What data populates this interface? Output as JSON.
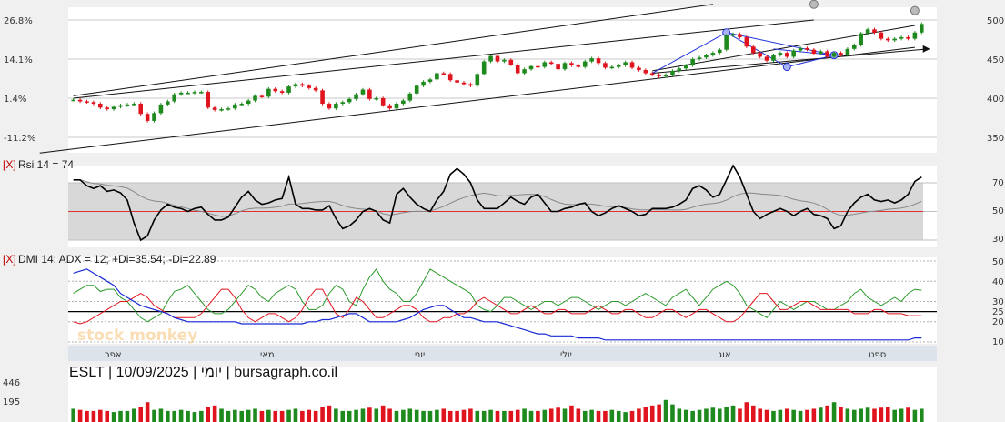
{
  "caption": "ESLT | 10/09/2025 | יומי | bursagraph.co.il",
  "watermark": "stock monkey",
  "colors": {
    "up": "#1e8a1e",
    "down": "#e0141e",
    "rsi": "#000000",
    "rsi_signal": "#888888",
    "plus_di": "#2a9a2a",
    "minus_di": "#e0141e",
    "adx": "#1a2ad6",
    "trend": "#111111",
    "pattern": "#2233dd"
  },
  "chart_data": [
    {
      "type": "candlestick",
      "title": "",
      "y_left_ticks": [
        "26.8%",
        "14.1%",
        "1.4%",
        "-11.2%"
      ],
      "y_right_ticks": [
        "500",
        "450",
        "400",
        "350"
      ],
      "ylim": [
        335,
        520
      ],
      "x_ticks": [
        "אפר",
        "מאי",
        "יוני",
        "יולי",
        "אוג",
        "ספט"
      ],
      "closes": [
        398,
        396,
        395,
        393,
        388,
        386,
        389,
        391,
        392,
        393,
        380,
        371,
        381,
        392,
        396,
        405,
        407,
        407,
        408,
        408,
        388,
        385,
        386,
        387,
        392,
        393,
        397,
        403,
        402,
        412,
        409,
        407,
        415,
        418,
        416,
        413,
        410,
        393,
        387,
        393,
        395,
        399,
        405,
        411,
        399,
        400,
        391,
        387,
        393,
        397,
        406,
        416,
        421,
        424,
        432,
        431,
        423,
        420,
        418,
        416,
        431,
        447,
        454,
        447,
        449,
        443,
        432,
        437,
        441,
        440,
        446,
        444,
        437,
        445,
        442,
        440,
        447,
        451,
        445,
        439,
        440,
        442,
        446,
        439,
        436,
        432,
        430,
        428,
        430,
        435,
        438,
        442,
        450,
        452,
        455,
        458,
        462,
        480,
        482,
        478,
        466,
        458,
        453,
        448,
        455,
        458,
        453,
        461,
        464,
        462,
        457,
        460,
        453,
        458,
        455,
        463,
        468,
        483,
        488,
        484,
        476,
        474,
        476,
        478,
        476,
        484,
        495
      ]
    },
    {
      "type": "line",
      "title": "Rsi 14 = 74",
      "y_ticks": [
        "70",
        "50",
        "30"
      ],
      "ylim": [
        25,
        80
      ],
      "series": [
        {
          "name": "Rsi 14",
          "values": [
            72,
            72,
            68,
            66,
            68,
            64,
            65,
            63,
            58,
            42,
            30,
            33,
            44,
            51,
            55,
            53,
            52,
            50,
            52,
            53,
            48,
            44,
            44,
            46,
            53,
            60,
            64,
            58,
            55,
            56,
            58,
            59,
            74,
            55,
            52,
            52,
            51,
            51,
            54,
            45,
            38,
            40,
            44,
            50,
            52,
            50,
            44,
            42,
            62,
            66,
            60,
            55,
            52,
            50,
            58,
            64,
            76,
            80,
            76,
            70,
            58,
            52,
            52,
            52,
            56,
            60,
            57,
            55,
            60,
            62,
            56,
            50,
            50,
            52,
            53,
            55,
            56,
            50,
            47,
            49,
            52,
            54,
            52,
            50,
            47,
            48,
            52,
            52,
            52,
            53,
            55,
            58,
            66,
            68,
            65,
            60,
            62,
            72,
            82,
            74,
            62,
            50,
            45,
            48,
            50,
            52,
            50,
            47,
            50,
            52,
            48,
            47,
            45,
            38,
            40,
            50,
            56,
            60,
            62,
            58,
            57,
            58,
            56,
            58,
            62,
            71,
            74
          ]
        },
        {
          "values": [
            50,
            50,
            50,
            50,
            50,
            50,
            50,
            50,
            50,
            50,
            50,
            50,
            50,
            50,
            50,
            50,
            50,
            50,
            50,
            50,
            50,
            50,
            50,
            50,
            50,
            50,
            50,
            50,
            50,
            50,
            50,
            50,
            50,
            50,
            50,
            50,
            50,
            50,
            50,
            50,
            50,
            50,
            50,
            50,
            50,
            50,
            50,
            50,
            50,
            50,
            50,
            50,
            50,
            50,
            50,
            50,
            50,
            50,
            50,
            50,
            50,
            50,
            50,
            50,
            50,
            50,
            50,
            50,
            50,
            50,
            50,
            50,
            50,
            50,
            50,
            50,
            50,
            50,
            50,
            50,
            50,
            50,
            50,
            50,
            50,
            50,
            50,
            50,
            50,
            50,
            50,
            50,
            50,
            50,
            50,
            50,
            50,
            50,
            50,
            50,
            50,
            50,
            50,
            50,
            50,
            50,
            50,
            50,
            50,
            50,
            50,
            50,
            50,
            50,
            50,
            50,
            50,
            50,
            50,
            50,
            50,
            50,
            50,
            50,
            50,
            50,
            50
          ]
        }
      ]
    },
    {
      "type": "line",
      "title": "DMI 14: ADX = 12; +Di=35.54; -Di=22.89",
      "y_ticks": [
        "50",
        "40",
        "30",
        "25",
        "20",
        "10"
      ],
      "ylim": [
        8,
        52
      ],
      "series": [
        {
          "name": "+Di",
          "values": [
            34,
            36,
            38,
            38,
            35,
            36,
            36,
            32,
            30,
            26,
            22,
            20,
            22,
            24,
            30,
            35,
            36,
            38,
            34,
            30,
            26,
            24,
            24,
            26,
            30,
            34,
            38,
            36,
            32,
            30,
            34,
            36,
            38,
            36,
            30,
            26,
            26,
            28,
            34,
            38,
            36,
            30,
            28,
            36,
            42,
            46,
            40,
            36,
            34,
            30,
            30,
            34,
            40,
            46,
            44,
            42,
            40,
            38,
            36,
            34,
            28,
            26,
            25,
            28,
            32,
            32,
            30,
            28,
            26,
            28,
            30,
            30,
            28,
            30,
            32,
            32,
            30,
            28,
            26,
            28,
            30,
            30,
            28,
            30,
            32,
            34,
            32,
            30,
            28,
            32,
            34,
            36,
            32,
            28,
            32,
            36,
            38,
            40,
            38,
            34,
            28,
            26,
            24,
            22,
            26,
            30,
            28,
            26,
            28,
            30,
            30,
            28,
            26,
            26,
            28,
            30,
            34,
            36,
            32,
            30,
            28,
            30,
            32,
            30,
            34,
            36,
            35.54
          ]
        },
        {
          "name": "-Di",
          "values": [
            20,
            19,
            20,
            22,
            24,
            26,
            28,
            30,
            30,
            32,
            34,
            32,
            28,
            26,
            24,
            22,
            22,
            22,
            22,
            24,
            28,
            32,
            36,
            36,
            32,
            26,
            22,
            20,
            22,
            24,
            24,
            22,
            20,
            22,
            26,
            32,
            36,
            36,
            30,
            24,
            22,
            26,
            32,
            30,
            26,
            22,
            22,
            24,
            26,
            28,
            28,
            26,
            22,
            20,
            20,
            22,
            22,
            24,
            24,
            26,
            30,
            32,
            30,
            28,
            26,
            24,
            24,
            26,
            28,
            26,
            24,
            24,
            26,
            26,
            24,
            24,
            24,
            26,
            28,
            26,
            24,
            24,
            26,
            26,
            24,
            22,
            22,
            24,
            26,
            26,
            24,
            22,
            24,
            26,
            26,
            24,
            22,
            20,
            20,
            22,
            26,
            30,
            34,
            34,
            30,
            26,
            26,
            28,
            30,
            30,
            28,
            26,
            26,
            26,
            26,
            26,
            24,
            24,
            24,
            26,
            26,
            24,
            24,
            24,
            23,
            23,
            22.89
          ]
        },
        {
          "name": "ADX",
          "values": [
            44,
            45,
            46,
            44,
            42,
            40,
            38,
            34,
            32,
            30,
            28,
            27,
            26,
            25,
            24,
            22,
            21,
            20,
            20,
            20,
            20,
            20,
            20,
            20,
            20,
            19,
            19,
            19,
            19,
            19,
            19,
            19,
            19,
            19,
            19,
            20,
            20,
            21,
            21,
            22,
            23,
            24,
            24,
            22,
            20,
            20,
            20,
            20,
            20,
            21,
            22,
            24,
            26,
            27,
            28,
            28,
            26,
            24,
            22,
            22,
            21,
            20,
            20,
            20,
            19,
            18,
            17,
            16,
            15,
            14,
            14,
            13,
            13,
            13,
            13,
            12,
            12,
            12,
            12,
            11,
            11,
            11,
            11,
            11,
            11,
            11,
            11,
            11,
            11,
            11,
            11,
            11,
            11,
            11,
            11,
            11,
            11,
            11,
            11,
            11,
            11,
            11,
            11,
            11,
            11,
            11,
            11,
            11,
            11,
            11,
            11,
            11,
            11,
            11,
            11,
            11,
            11,
            11,
            11,
            11,
            11,
            11,
            11,
            11,
            11,
            12,
            12
          ]
        }
      ]
    },
    {
      "type": "bar",
      "title": "",
      "y_ticks": [
        "446",
        "195"
      ],
      "ylim": [
        0,
        500
      ],
      "values": [
        120,
        110,
        100,
        100,
        110,
        100,
        90,
        100,
        100,
        120,
        140,
        180,
        110,
        120,
        100,
        100,
        110,
        100,
        90,
        100,
        140,
        150,
        120,
        100,
        110,
        100,
        110,
        120,
        100,
        110,
        100,
        100,
        110,
        120,
        100,
        110,
        100,
        140,
        150,
        120,
        100,
        100,
        110,
        120,
        130,
        120,
        150,
        120,
        100,
        110,
        120,
        110,
        100,
        100,
        110,
        120,
        100,
        100,
        110,
        120,
        100,
        100,
        110,
        100,
        100,
        100,
        110,
        120,
        100,
        100,
        110,
        120,
        130,
        120,
        150,
        120,
        100,
        110,
        100,
        100,
        110,
        100,
        90,
        100,
        120,
        140,
        150,
        160,
        200,
        160,
        120,
        110,
        100,
        110,
        120,
        130,
        120,
        140,
        150,
        120,
        180,
        150,
        120,
        110,
        100,
        110,
        120,
        110,
        100,
        110,
        120,
        130,
        150,
        180,
        140,
        120,
        110,
        120,
        130,
        120,
        130,
        140,
        110,
        120,
        130,
        110,
        120
      ]
    }
  ]
}
